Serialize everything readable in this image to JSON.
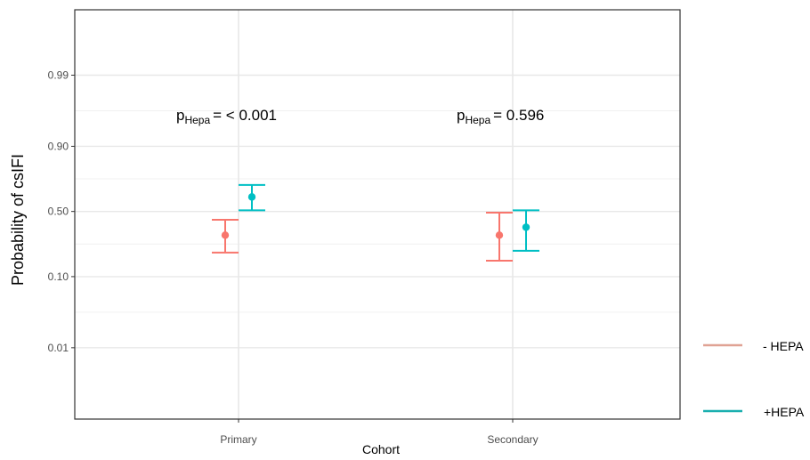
{
  "chart_data": {
    "type": "scatter",
    "xlabel": "Cohort",
    "ylabel": "Probability of csIFI",
    "categories": [
      "Primary",
      "Secondary"
    ],
    "y_ticks": [
      {
        "value": 0.01,
        "label": "0.01"
      },
      {
        "value": 0.1,
        "label": "0.10"
      },
      {
        "value": 0.5,
        "label": "0.50"
      },
      {
        "value": 0.9,
        "label": "0.90"
      },
      {
        "value": 0.99,
        "label": "0.99"
      }
    ],
    "ylim_logit": [
      -7.0,
      6.8
    ],
    "series": [
      {
        "name": "- HEPA",
        "color": "#F8766D",
        "points": [
          {
            "category": "Primary",
            "estimate": 0.31,
            "lower": 0.2,
            "upper": 0.43
          },
          {
            "category": "Secondary",
            "estimate": 0.31,
            "lower": 0.16,
            "upper": 0.49
          }
        ]
      },
      {
        "name": "+HEPA",
        "color": "#00BFC4",
        "points": [
          {
            "category": "Primary",
            "estimate": 0.62,
            "lower": 0.51,
            "upper": 0.71
          },
          {
            "category": "Secondary",
            "estimate": 0.37,
            "lower": 0.21,
            "upper": 0.51
          }
        ]
      }
    ],
    "annotations": [
      {
        "category": "Primary",
        "p_main": "p",
        "p_sub": "Hepa",
        "p_rest": "= < 0.001"
      },
      {
        "category": "Secondary",
        "p_main": "p",
        "p_sub": "Hepa",
        "p_rest": "=  0.596"
      }
    ],
    "grid": true,
    "legend_position": "right"
  },
  "colors": {
    "minus_hepa": "#F8766D",
    "minus_hepa_legend": "#E0A294",
    "plus_hepa": "#00BFC4",
    "plus_hepa_legend": "#1AAFAF"
  }
}
